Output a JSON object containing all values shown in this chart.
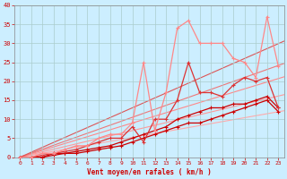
{
  "background_color": "#cceeff",
  "grid_color": "#aacccc",
  "xlabel": "Vent moyen/en rafales ( km/h )",
  "xlabel_color": "#cc0000",
  "ylabel_yticks": [
    0,
    5,
    10,
    15,
    20,
    25,
    30,
    35,
    40
  ],
  "xticks": [
    0,
    1,
    2,
    3,
    4,
    5,
    6,
    7,
    8,
    9,
    10,
    11,
    12,
    13,
    14,
    15,
    16,
    17,
    18,
    19,
    20,
    21,
    22,
    23
  ],
  "xlim": [
    -0.5,
    23.5
  ],
  "ylim": [
    0,
    40
  ],
  "straight_lines": [
    {
      "slope": 0.52,
      "color": "#ffaaaa",
      "lw": 0.8
    },
    {
      "slope": 0.7,
      "color": "#ff9999",
      "lw": 0.8
    },
    {
      "slope": 0.9,
      "color": "#ff8888",
      "lw": 0.8
    },
    {
      "slope": 1.05,
      "color": "#ee7777",
      "lw": 0.8
    },
    {
      "slope": 1.3,
      "color": "#dd5555",
      "lw": 0.8
    }
  ],
  "data_lines": [
    {
      "x": [
        0,
        1,
        2,
        3,
        4,
        5,
        6,
        7,
        8,
        9,
        10,
        11,
        12,
        13,
        14,
        15,
        16,
        17,
        18,
        19,
        20,
        21,
        22,
        23
      ],
      "y": [
        0,
        0,
        0,
        0.5,
        1,
        1,
        1.5,
        2,
        2.5,
        3,
        4,
        5,
        6,
        7,
        8,
        9,
        9,
        10,
        11,
        12,
        13,
        14,
        15,
        12
      ],
      "color": "#cc0000",
      "lw": 0.9,
      "marker": "+"
    },
    {
      "x": [
        0,
        1,
        2,
        3,
        4,
        5,
        6,
        7,
        8,
        9,
        10,
        11,
        12,
        13,
        14,
        15,
        16,
        17,
        18,
        19,
        20,
        21,
        22,
        23
      ],
      "y": [
        0,
        0,
        0,
        1,
        1,
        1.5,
        2,
        2.5,
        3,
        4,
        5,
        6,
        7,
        8,
        10,
        11,
        12,
        13,
        13,
        14,
        14,
        15,
        16,
        13
      ],
      "color": "#cc0000",
      "lw": 0.9,
      "marker": "+"
    },
    {
      "x": [
        0,
        1,
        2,
        3,
        4,
        5,
        6,
        7,
        8,
        9,
        10,
        11,
        12,
        13,
        14,
        15,
        16,
        17,
        18,
        19,
        20,
        21,
        22,
        23
      ],
      "y": [
        0,
        0,
        0.5,
        1,
        1.5,
        2,
        3,
        4,
        5,
        5,
        8,
        4,
        10,
        10,
        15,
        25,
        17,
        17,
        16,
        19,
        21,
        20,
        21,
        13
      ],
      "color": "#dd3333",
      "lw": 0.9,
      "marker": "+"
    },
    {
      "x": [
        0,
        1,
        2,
        3,
        4,
        5,
        6,
        7,
        8,
        9,
        10,
        11,
        12,
        13,
        14,
        15,
        16,
        17,
        18,
        19,
        20,
        21,
        22,
        23
      ],
      "y": [
        0,
        0,
        1,
        1,
        2,
        3,
        3,
        5,
        6,
        6,
        9,
        25,
        7,
        17,
        34,
        36,
        30,
        30,
        30,
        26,
        25,
        21,
        37,
        24
      ],
      "color": "#ff8888",
      "lw": 0.9,
      "marker": "+"
    }
  ]
}
